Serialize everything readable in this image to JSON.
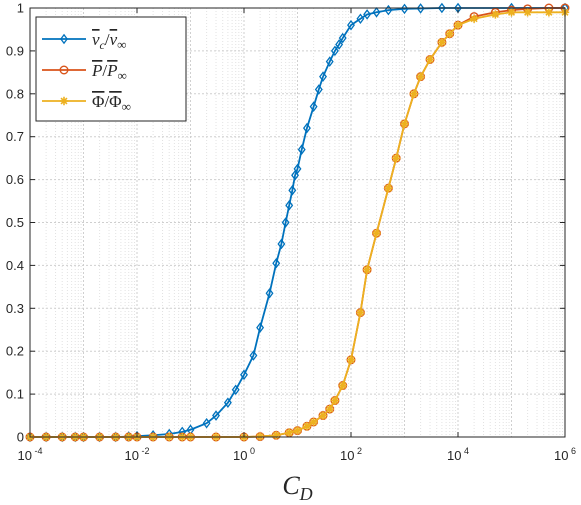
{
  "chart_data": {
    "type": "line",
    "xscale": "log",
    "xlim": [
      0.0001,
      1000000
    ],
    "ylim": [
      0,
      1
    ],
    "xlabel": "C",
    "xlabel_sub": "D",
    "ylabel": "",
    "title": "",
    "grid": true,
    "legend_position": "top-left",
    "x_ticks": [
      {
        "base": "10",
        "exp": "-4",
        "value": 0.0001
      },
      {
        "base": "10",
        "exp": "-2",
        "value": 0.01
      },
      {
        "base": "10",
        "exp": "0",
        "value": 1
      },
      {
        "base": "10",
        "exp": "2",
        "value": 100
      },
      {
        "base": "10",
        "exp": "4",
        "value": 10000
      },
      {
        "base": "10",
        "exp": "6",
        "value": 1000000
      }
    ],
    "y_ticks": [
      "0",
      "0.1",
      "0.2",
      "0.3",
      "0.4",
      "0.5",
      "0.6",
      "0.7",
      "0.8",
      "0.9",
      "1"
    ],
    "series": [
      {
        "name": "v̄c/v̄∞",
        "legend": {
          "main": "v",
          "sub": "c",
          "div": "/",
          "main2": "v",
          "sub2": "∞"
        },
        "color": "#0072BD",
        "marker": "diamond",
        "x": [
          0.0001,
          0.0002,
          0.0004,
          0.0007,
          0.001,
          0.002,
          0.004,
          0.007,
          0.01,
          0.02,
          0.04,
          0.07,
          0.1,
          0.2,
          0.3,
          0.5,
          0.7,
          1.0,
          1.5,
          2.0,
          3.0,
          4.0,
          5.0,
          6.0,
          7.0,
          8.0,
          9.0,
          10.0,
          12.0,
          15.0,
          20.0,
          25.0,
          30.0,
          40.0,
          50.0,
          60.0,
          70.0,
          100.0,
          150.0,
          200.0,
          300.0,
          500.0,
          1000.0,
          2000.0,
          5000.0,
          10000.0,
          100000.0,
          1000000.0
        ],
        "y": [
          0.0,
          0.0,
          0.0,
          0.0,
          0.0,
          0.0,
          0.0,
          0.001,
          0.002,
          0.004,
          0.007,
          0.012,
          0.017,
          0.032,
          0.05,
          0.08,
          0.11,
          0.145,
          0.19,
          0.255,
          0.335,
          0.405,
          0.45,
          0.5,
          0.54,
          0.575,
          0.61,
          0.625,
          0.67,
          0.72,
          0.77,
          0.81,
          0.84,
          0.875,
          0.9,
          0.915,
          0.93,
          0.96,
          0.975,
          0.985,
          0.99,
          0.995,
          0.998,
          0.999,
          1.0,
          1.0,
          1.0,
          1.0
        ]
      },
      {
        "name": "P̄/P̄∞",
        "legend": {
          "main": "P",
          "sub": "",
          "div": "/",
          "main2": "P",
          "sub2": "∞"
        },
        "color": "#D95319",
        "marker": "circle",
        "x": [
          0.0001,
          0.0002,
          0.0004,
          0.0007,
          0.001,
          0.002,
          0.004,
          0.007,
          0.01,
          0.02,
          0.04,
          0.07,
          0.1,
          0.3,
          1.0,
          2.0,
          4.0,
          7.0,
          10.0,
          15.0,
          20.0,
          30.0,
          40.0,
          50.0,
          70.0,
          100.0,
          150.0,
          200.0,
          300.0,
          500.0,
          700.0,
          1000.0,
          1500.0,
          2000.0,
          3000.0,
          5000.0,
          7000.0,
          10000.0,
          20000.0,
          50000.0,
          100000.0,
          200000.0,
          500000.0,
          1000000.0
        ],
        "y": [
          0.0,
          0.0,
          0.0,
          0.0,
          0.0,
          0.0,
          0.0,
          0.0,
          0.0,
          0.0,
          0.0,
          0.0,
          0.0,
          0.0,
          0.0,
          0.001,
          0.004,
          0.01,
          0.015,
          0.025,
          0.035,
          0.05,
          0.065,
          0.085,
          0.12,
          0.18,
          0.29,
          0.39,
          0.475,
          0.58,
          0.65,
          0.73,
          0.8,
          0.84,
          0.88,
          0.92,
          0.94,
          0.96,
          0.98,
          0.99,
          0.995,
          0.998,
          1.0,
          1.0
        ]
      },
      {
        "name": "Φ̄/Φ̄∞",
        "legend": {
          "main": "Φ",
          "sub": "",
          "div": "/",
          "main2": "Φ",
          "sub2": "∞"
        },
        "color": "#EDB120",
        "marker": "asterisk",
        "x": [
          0.0001,
          0.0002,
          0.0004,
          0.0007,
          0.001,
          0.002,
          0.004,
          0.007,
          0.01,
          0.02,
          0.04,
          0.07,
          0.1,
          0.3,
          1.0,
          2.0,
          4.0,
          7.0,
          10.0,
          15.0,
          20.0,
          30.0,
          40.0,
          50.0,
          70.0,
          100.0,
          150.0,
          200.0,
          300.0,
          500.0,
          700.0,
          1000.0,
          1500.0,
          2000.0,
          3000.0,
          5000.0,
          7000.0,
          10000.0,
          20000.0,
          50000.0,
          100000.0,
          200000.0,
          500000.0,
          1000000.0
        ],
        "y": [
          0.0,
          0.0,
          0.0,
          0.0,
          0.0,
          0.0,
          0.0,
          0.0,
          0.0,
          0.0,
          0.0,
          0.0,
          0.0,
          0.0,
          0.0,
          0.001,
          0.004,
          0.01,
          0.015,
          0.025,
          0.035,
          0.05,
          0.065,
          0.085,
          0.12,
          0.18,
          0.29,
          0.39,
          0.475,
          0.58,
          0.65,
          0.73,
          0.8,
          0.84,
          0.88,
          0.92,
          0.94,
          0.96,
          0.975,
          0.985,
          0.99,
          0.99,
          0.99,
          0.99
        ]
      }
    ]
  }
}
